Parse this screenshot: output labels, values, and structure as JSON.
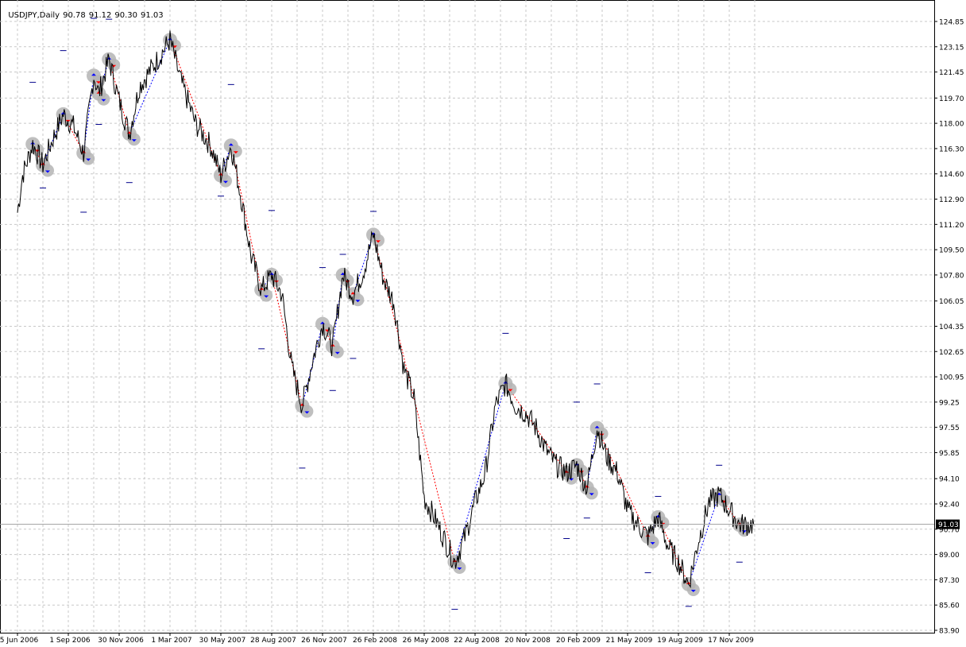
{
  "header": {
    "symbol": "USDJPY,Daily",
    "open": "90.78",
    "high": "91.12",
    "low": "90.30",
    "close": "91.03"
  },
  "colors": {
    "price_line": "#000000",
    "grid": "#c8c8c8",
    "up_marker": "#0000ff",
    "down_marker": "#ff0000",
    "arrow_halo": "#b4b4b4",
    "zigzag_up": "#0000ff",
    "zigzag_down": "#ff0000",
    "dash_marker": "#00008b",
    "price_tag_bg": "#000000",
    "price_tag_fg": "#ffffff"
  },
  "chart_data": {
    "type": "line",
    "title": "USDJPY,Daily",
    "ylim": [
      83.9,
      124.85
    ],
    "yticks": [
      "124.85",
      "123.15",
      "121.45",
      "119.70",
      "118.00",
      "116.30",
      "114.60",
      "112.90",
      "111.20",
      "109.50",
      "107.80",
      "106.05",
      "104.35",
      "102.65",
      "100.95",
      "99.25",
      "97.55",
      "95.85",
      "94.10",
      "92.40",
      "90.70",
      "89.00",
      "87.30",
      "85.60",
      "83.90"
    ],
    "xticks": [
      "5 Jun 2006",
      "1 Sep 2006",
      "30 Nov 2006",
      "1 Mar 2007",
      "30 May 2007",
      "28 Aug 2007",
      "26 Nov 2007",
      "26 Feb 2008",
      "26 May 2008",
      "22 Aug 2008",
      "20 Nov 2008",
      "20 Feb 2009",
      "21 May 2009",
      "19 Aug 2009",
      "17 Nov 2009"
    ],
    "current_price": "91.03",
    "grid": true,
    "series": [
      {
        "x": [
          0,
          0.1,
          0.3,
          0.5,
          0.7,
          0.9,
          1.1,
          1.3,
          1.5,
          1.6,
          1.8,
          2.0,
          2.2,
          2.4,
          2.7,
          3.0,
          3.2,
          3.5,
          3.8,
          4.0,
          4.2,
          4.4,
          4.6,
          4.8,
          5.0,
          5.2,
          5.4,
          5.6,
          5.8,
          6.0,
          6.2,
          6.4,
          6.6,
          6.8,
          7.0,
          7.2,
          7.4,
          7.6,
          7.8,
          8.0,
          8.2,
          8.4,
          8.6,
          8.8,
          9.0,
          9.2,
          9.4,
          9.6,
          9.8,
          10.0,
          10.2,
          10.4,
          10.6,
          10.8,
          11.0,
          11.2,
          11.4,
          11.6,
          11.8,
          12.0,
          12.2,
          12.4,
          12.6,
          12.8,
          13.0,
          13.2,
          13.4,
          13.6,
          13.8,
          14.0,
          14.2,
          14.5
        ],
        "y": [
          112.0,
          114.5,
          116.6,
          115.2,
          117.0,
          118.6,
          117.8,
          116.0,
          121.2,
          120.0,
          122.3,
          119.5,
          117.3,
          120.5,
          122.0,
          123.6,
          121.0,
          118.0,
          116.5,
          114.5,
          116.5,
          113.0,
          109.0,
          106.8,
          107.8,
          106.5,
          101.5,
          99.0,
          102.0,
          104.5,
          103.0,
          107.8,
          106.5,
          108.0,
          110.5,
          107.5,
          106.0,
          101.5,
          99.5,
          92.8,
          91.5,
          90.0,
          88.5,
          90.2,
          92.5,
          94.5,
          99.0,
          100.5,
          99.0,
          98.5,
          97.5,
          96.0,
          95.0,
          94.5,
          95.0,
          93.5,
          97.5,
          95.5,
          94.5,
          92.0,
          91.0,
          90.2,
          91.5,
          89.5,
          88.5,
          87.0,
          90.0,
          92.5,
          93.0,
          92.0,
          91.0,
          91.03
        ]
      }
    ]
  }
}
